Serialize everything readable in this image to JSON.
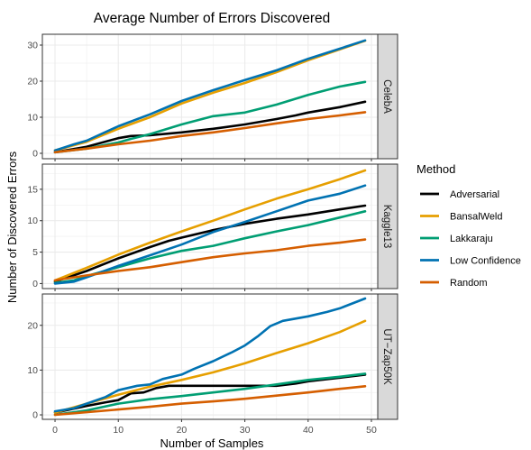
{
  "chart_data": {
    "type": "line",
    "title": "Average Number of Errors Discovered",
    "xlabel": "Number of Samples",
    "ylabel": "Number of Discovered Errors",
    "xlim": [
      -2,
      51
    ],
    "x_ticks": [
      0,
      10,
      20,
      30,
      40,
      50
    ],
    "grid": true,
    "legend": {
      "title": "Method",
      "position": "right",
      "items": [
        {
          "name": "Adversarial",
          "color": "#000000"
        },
        {
          "name": "BansalWeld",
          "color": "#E69F00"
        },
        {
          "name": "Lakkaraju",
          "color": "#009E73"
        },
        {
          "name": "Low Confidence",
          "color": "#0072B2"
        },
        {
          "name": "Random",
          "color": "#D55E00"
        }
      ]
    },
    "panels": [
      {
        "strip": "CelebA",
        "ylim": [
          -1.5,
          33
        ],
        "y_ticks": [
          0,
          10,
          20,
          30
        ],
        "series": [
          {
            "name": "Adversarial",
            "color": "#000000",
            "points": [
              [
                0,
                0.3
              ],
              [
                5,
                1.8
              ],
              [
                10,
                4.2
              ],
              [
                12,
                4.8
              ],
              [
                15,
                5.0
              ],
              [
                20,
                5.8
              ],
              [
                25,
                6.8
              ],
              [
                30,
                8.0
              ],
              [
                35,
                9.5
              ],
              [
                38,
                10.5
              ],
              [
                40,
                11.3
              ],
              [
                45,
                12.8
              ],
              [
                49,
                14.3
              ]
            ]
          },
          {
            "name": "BansalWeld",
            "color": "#E69F00",
            "points": [
              [
                0,
                0.8
              ],
              [
                5,
                3.2
              ],
              [
                10,
                6.8
              ],
              [
                15,
                10.0
              ],
              [
                20,
                13.8
              ],
              [
                25,
                16.8
              ],
              [
                30,
                19.5
              ],
              [
                35,
                22.5
              ],
              [
                40,
                25.8
              ],
              [
                45,
                28.8
              ],
              [
                49,
                31.2
              ]
            ]
          },
          {
            "name": "Lakkaraju",
            "color": "#009E73",
            "points": [
              [
                0,
                0.3
              ],
              [
                5,
                1.3
              ],
              [
                10,
                3.0
              ],
              [
                12,
                4.0
              ],
              [
                15,
                5.3
              ],
              [
                20,
                8.0
              ],
              [
                25,
                10.3
              ],
              [
                30,
                11.3
              ],
              [
                35,
                13.5
              ],
              [
                40,
                16.2
              ],
              [
                45,
                18.5
              ],
              [
                49,
                19.8
              ]
            ]
          },
          {
            "name": "Low Confidence",
            "color": "#0072B2",
            "points": [
              [
                0,
                0.8
              ],
              [
                3,
                2.5
              ],
              [
                5,
                3.5
              ],
              [
                10,
                7.5
              ],
              [
                15,
                10.8
              ],
              [
                20,
                14.5
              ],
              [
                25,
                17.5
              ],
              [
                30,
                20.3
              ],
              [
                35,
                23.0
              ],
              [
                40,
                26.2
              ],
              [
                45,
                29.0
              ],
              [
                49,
                31.3
              ]
            ]
          },
          {
            "name": "Random",
            "color": "#D55E00",
            "points": [
              [
                0,
                0.3
              ],
              [
                5,
                1.3
              ],
              [
                10,
                2.5
              ],
              [
                15,
                3.5
              ],
              [
                20,
                4.8
              ],
              [
                25,
                5.8
              ],
              [
                30,
                7.0
              ],
              [
                35,
                8.3
              ],
              [
                40,
                9.5
              ],
              [
                45,
                10.5
              ],
              [
                49,
                11.4
              ]
            ]
          }
        ]
      },
      {
        "strip": "Kaggle13",
        "ylim": [
          -0.8,
          19
        ],
        "y_ticks": [
          0,
          5,
          10,
          15
        ],
        "series": [
          {
            "name": "Adversarial",
            "color": "#000000",
            "points": [
              [
                0,
                0.3
              ],
              [
                5,
                2.0
              ],
              [
                10,
                4.0
              ],
              [
                15,
                5.8
              ],
              [
                18,
                6.8
              ],
              [
                20,
                7.3
              ],
              [
                25,
                8.5
              ],
              [
                30,
                9.5
              ],
              [
                35,
                10.3
              ],
              [
                40,
                11.0
              ],
              [
                45,
                11.8
              ],
              [
                49,
                12.4
              ]
            ]
          },
          {
            "name": "BansalWeld",
            "color": "#E69F00",
            "points": [
              [
                0,
                0.5
              ],
              [
                5,
                2.5
              ],
              [
                10,
                4.6
              ],
              [
                15,
                6.5
              ],
              [
                20,
                8.3
              ],
              [
                25,
                10.0
              ],
              [
                30,
                11.8
              ],
              [
                35,
                13.5
              ],
              [
                40,
                15.0
              ],
              [
                45,
                16.6
              ],
              [
                49,
                18.0
              ]
            ]
          },
          {
            "name": "Lakkaraju",
            "color": "#009E73",
            "points": [
              [
                0,
                0.1
              ],
              [
                3,
                0.5
              ],
              [
                5,
                1.2
              ],
              [
                10,
                2.6
              ],
              [
                15,
                4.0
              ],
              [
                20,
                5.2
              ],
              [
                25,
                6.0
              ],
              [
                30,
                7.2
              ],
              [
                35,
                8.3
              ],
              [
                40,
                9.3
              ],
              [
                45,
                10.5
              ],
              [
                49,
                11.5
              ]
            ]
          },
          {
            "name": "Low Confidence",
            "color": "#0072B2",
            "points": [
              [
                0,
                0.0
              ],
              [
                3,
                0.3
              ],
              [
                5,
                1.0
              ],
              [
                10,
                2.8
              ],
              [
                15,
                4.5
              ],
              [
                20,
                6.2
              ],
              [
                25,
                8.2
              ],
              [
                30,
                9.8
              ],
              [
                35,
                11.5
              ],
              [
                40,
                13.2
              ],
              [
                45,
                14.3
              ],
              [
                49,
                15.6
              ]
            ]
          },
          {
            "name": "Random",
            "color": "#D55E00",
            "points": [
              [
                0,
                0.5
              ],
              [
                5,
                1.3
              ],
              [
                10,
                2.0
              ],
              [
                15,
                2.6
              ],
              [
                20,
                3.4
              ],
              [
                25,
                4.2
              ],
              [
                30,
                4.8
              ],
              [
                35,
                5.3
              ],
              [
                40,
                6.0
              ],
              [
                45,
                6.5
              ],
              [
                49,
                7.0
              ]
            ]
          }
        ]
      },
      {
        "strip": "UT−Zap50K",
        "ylim": [
          -1.0,
          27
        ],
        "y_ticks": [
          0,
          10,
          20
        ],
        "series": [
          {
            "name": "Adversarial",
            "color": "#000000",
            "points": [
              [
                0,
                0.5
              ],
              [
                5,
                2.0
              ],
              [
                8,
                2.8
              ],
              [
                10,
                3.3
              ],
              [
                12,
                4.8
              ],
              [
                14,
                5.0
              ],
              [
                16,
                6.0
              ],
              [
                18,
                6.5
              ],
              [
                20,
                6.5
              ],
              [
                25,
                6.5
              ],
              [
                30,
                6.5
              ],
              [
                35,
                6.5
              ],
              [
                38,
                7.0
              ],
              [
                40,
                7.5
              ],
              [
                45,
                8.3
              ],
              [
                49,
                9.0
              ]
            ]
          },
          {
            "name": "BansalWeld",
            "color": "#E69F00",
            "points": [
              [
                0,
                0.5
              ],
              [
                5,
                2.5
              ],
              [
                10,
                4.5
              ],
              [
                15,
                6.3
              ],
              [
                20,
                7.8
              ],
              [
                25,
                9.5
              ],
              [
                30,
                11.5
              ],
              [
                35,
                13.8
              ],
              [
                40,
                16.0
              ],
              [
                45,
                18.5
              ],
              [
                49,
                21.0
              ]
            ]
          },
          {
            "name": "Lakkaraju",
            "color": "#009E73",
            "points": [
              [
                0,
                0.0
              ],
              [
                5,
                1.0
              ],
              [
                10,
                2.5
              ],
              [
                15,
                3.5
              ],
              [
                20,
                4.2
              ],
              [
                25,
                5.0
              ],
              [
                30,
                5.8
              ],
              [
                35,
                6.8
              ],
              [
                40,
                7.8
              ],
              [
                45,
                8.5
              ],
              [
                49,
                9.2
              ]
            ]
          },
          {
            "name": "Low Confidence",
            "color": "#0072B2",
            "points": [
              [
                0,
                0.8
              ],
              [
                3,
                1.5
              ],
              [
                5,
                2.5
              ],
              [
                8,
                4.0
              ],
              [
                10,
                5.5
              ],
              [
                13,
                6.5
              ],
              [
                15,
                6.8
              ],
              [
                17,
                8.0
              ],
              [
                20,
                9.0
              ],
              [
                22,
                10.3
              ],
              [
                25,
                12.0
              ],
              [
                28,
                14.0
              ],
              [
                30,
                15.5
              ],
              [
                32,
                17.5
              ],
              [
                34,
                19.8
              ],
              [
                36,
                21.0
              ],
              [
                40,
                22.0
              ],
              [
                43,
                23.0
              ],
              [
                45,
                23.8
              ],
              [
                49,
                26.0
              ]
            ]
          },
          {
            "name": "Random",
            "color": "#D55E00",
            "points": [
              [
                0,
                0.0
              ],
              [
                5,
                0.6
              ],
              [
                10,
                1.2
              ],
              [
                15,
                1.8
              ],
              [
                20,
                2.5
              ],
              [
                25,
                3.0
              ],
              [
                30,
                3.6
              ],
              [
                35,
                4.3
              ],
              [
                40,
                5.0
              ],
              [
                45,
                5.8
              ],
              [
                49,
                6.4
              ]
            ]
          }
        ]
      }
    ]
  }
}
